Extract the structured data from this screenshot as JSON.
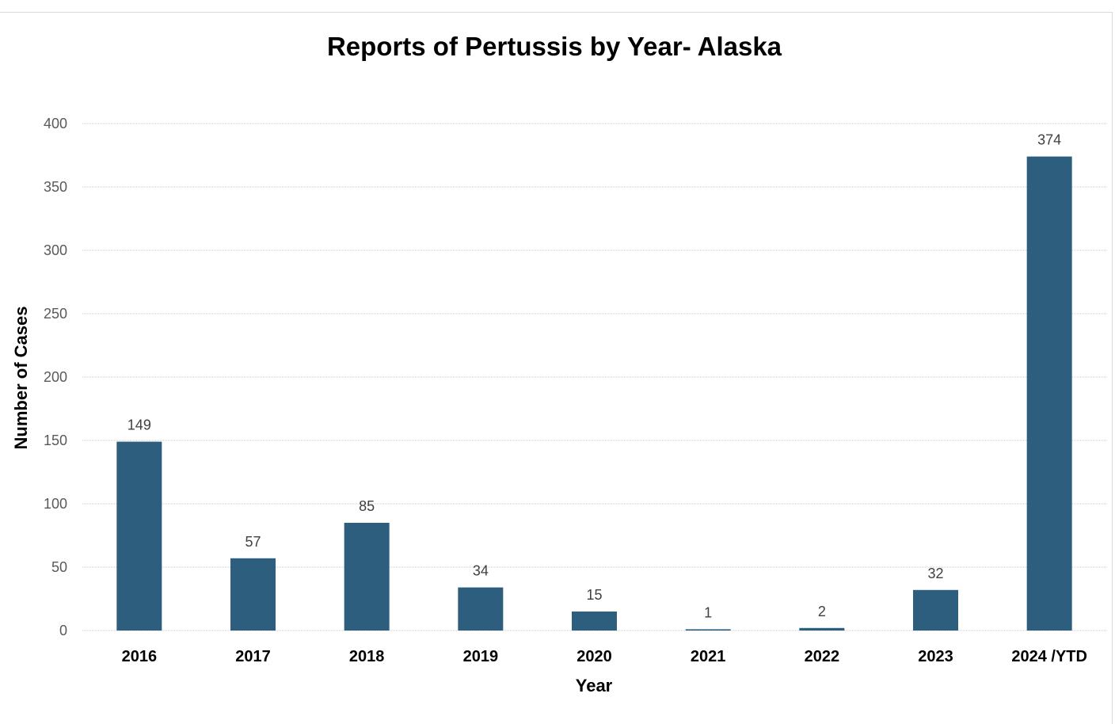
{
  "chart_data": {
    "type": "bar",
    "title": "Reports of Pertussis by Year- Alaska",
    "xlabel": "Year",
    "ylabel": "Number of Cases",
    "categories": [
      "2016",
      "2017",
      "2018",
      "2019",
      "2020",
      "2021",
      "2022",
      "2023",
      "2024 /YTD"
    ],
    "values": [
      149,
      57,
      85,
      34,
      15,
      1,
      2,
      32,
      374
    ],
    "data_labels": [
      "149",
      "57",
      "85",
      "34",
      "15",
      "1",
      "2",
      "32",
      "374"
    ],
    "ylim": [
      0,
      400
    ],
    "yticks": [
      0,
      50,
      100,
      150,
      200,
      250,
      300,
      350,
      400
    ],
    "ytick_labels": [
      "0",
      "50",
      "100",
      "150",
      "200",
      "250",
      "300",
      "350",
      "400"
    ],
    "grid": true,
    "legend": "none",
    "bar_color": "#2E5E7E"
  }
}
